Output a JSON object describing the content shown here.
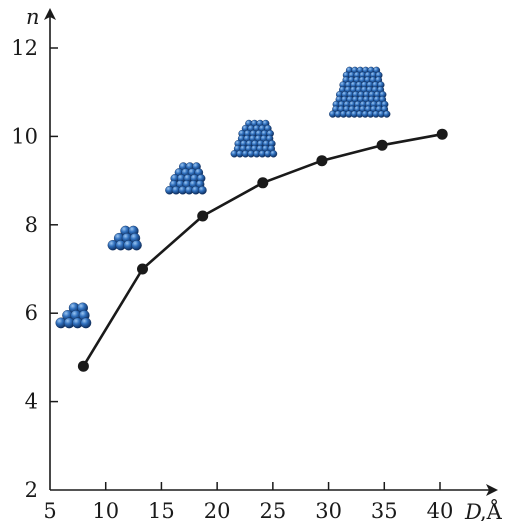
{
  "chart_data": {
    "type": "line",
    "title": "",
    "xlabel": "D",
    "xunit": ",Å",
    "ylabel": "n",
    "xlim": [
      5,
      45
    ],
    "ylim": [
      2,
      13
    ],
    "x_ticks": [
      5,
      10,
      15,
      20,
      25,
      30,
      35,
      40
    ],
    "y_ticks": [
      2,
      4,
      6,
      8,
      10,
      12
    ],
    "x_tick_labels": [
      "5",
      "10",
      "15",
      "20",
      "25",
      "30",
      "35",
      "40"
    ],
    "y_tick_labels": [
      "2",
      "4",
      "6",
      "8",
      "10",
      "12"
    ],
    "grid": false,
    "series": [
      {
        "x": [
          8.0,
          13.3,
          18.7,
          24.1,
          29.4,
          34.8,
          40.2
        ],
        "y": [
          4.8,
          7.0,
          8.2,
          8.95,
          9.45,
          9.8,
          10.05
        ]
      }
    ],
    "line_color": "#1a1a1a",
    "marker_color": "#1a1a1a",
    "cluster_color": "#2a66b4",
    "cluster_illustrations": [
      {
        "x": 7.1,
        "y": 5.95,
        "scale": 1.0
      },
      {
        "x": 11.7,
        "y": 7.7,
        "scale": 1.1
      },
      {
        "x": 17.2,
        "y": 9.05,
        "scale": 1.6
      },
      {
        "x": 23.3,
        "y": 9.95,
        "scale": 2.2
      },
      {
        "x": 32.8,
        "y": 11.0,
        "scale": 3.3
      }
    ]
  }
}
